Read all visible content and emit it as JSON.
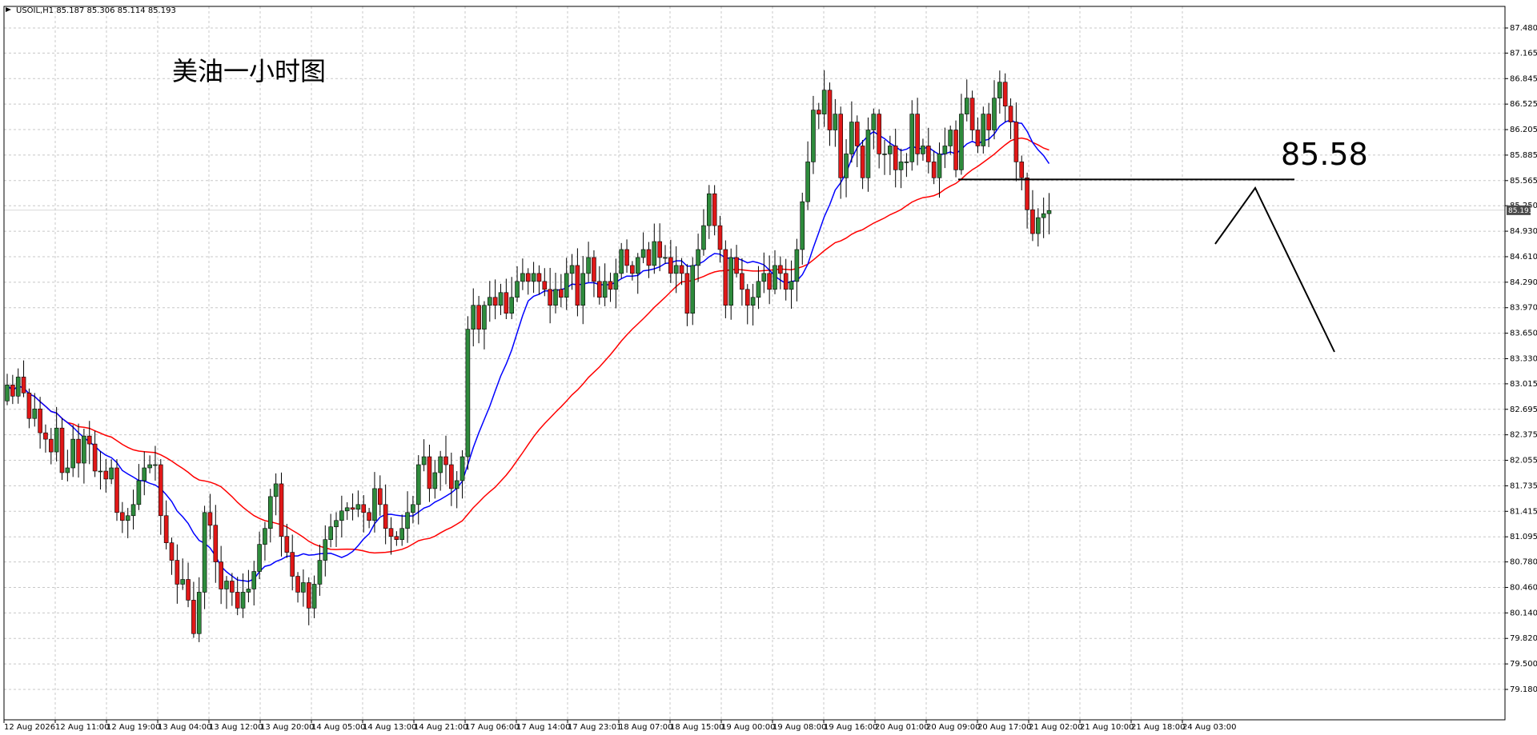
{
  "header": {
    "symbol": "USOIL,H1",
    "ohlc": "85.187 85.306 85.114 85.193"
  },
  "annotations": {
    "title_cn": "美油一小时图",
    "level_label": "85.58",
    "level_value": 85.58
  },
  "colors": {
    "bull_candle": "#2e8b3c",
    "bear_candle": "#e01818",
    "ma_fast": "#0000ff",
    "ma_slow": "#ff0000",
    "grid": "#c8c8c8",
    "price_tag": "#4a4a4a"
  },
  "chart_data": {
    "type": "candlestick",
    "ylim": [
      79.18,
      87.48
    ],
    "yticks": [
      "87.480",
      "87.165",
      "86.845",
      "86.525",
      "86.205",
      "85.885",
      "85.565",
      "85.250",
      "84.930",
      "84.610",
      "84.290",
      "83.970",
      "83.650",
      "83.330",
      "83.015",
      "82.695",
      "82.375",
      "82.055",
      "81.735",
      "81.415",
      "81.095",
      "80.780",
      "80.460",
      "80.140",
      "79.820",
      "79.500",
      "79.180"
    ],
    "xticks": [
      "12 Aug 2026",
      "12 Aug 11:00",
      "12 Aug 19:00",
      "13 Aug 04:00",
      "13 Aug 12:00",
      "13 Aug 20:00",
      "14 Aug 05:00",
      "14 Aug 13:00",
      "14 Aug 21:00",
      "17 Aug 06:00",
      "17 Aug 14:00",
      "17 Aug 23:01",
      "18 Aug 07:00",
      "18 Aug 15:00",
      "19 Aug 00:00",
      "19 Aug 08:00",
      "19 Aug 16:00",
      "20 Aug 01:00",
      "20 Aug 09:00",
      "20 Aug 17:00",
      "21 Aug 02:00",
      "21 Aug 10:00",
      "21 Aug 18:00",
      "24 Aug 03:00"
    ],
    "current_price": "85.193",
    "close": [
      83.0,
      82.86,
      83.1,
      82.9,
      82.58,
      82.7,
      82.4,
      82.32,
      82.16,
      82.46,
      81.9,
      81.96,
      82.32,
      82.02,
      82.36,
      82.26,
      81.92,
      81.92,
      81.82,
      81.96,
      81.4,
      81.3,
      81.36,
      81.5,
      81.8,
      81.96,
      82.0,
      82.0,
      81.36,
      81.02,
      80.8,
      80.5,
      80.56,
      80.3,
      79.88,
      80.4,
      81.4,
      81.24,
      80.78,
      80.44,
      80.54,
      80.4,
      80.2,
      80.4,
      80.44,
      80.66,
      81.0,
      81.2,
      81.6,
      81.76,
      81.1,
      80.9,
      80.6,
      80.4,
      80.52,
      80.2,
      80.5,
      80.8,
      81.06,
      81.22,
      81.3,
      81.42,
      81.46,
      81.44,
      81.5,
      81.4,
      81.3,
      81.7,
      81.5,
      81.2,
      81.1,
      81.06,
      81.2,
      81.4,
      81.5,
      82.0,
      82.1,
      81.7,
      81.9,
      82.1,
      82.0,
      81.7,
      81.8,
      82.1,
      83.7,
      84.0,
      83.7,
      84.0,
      84.1,
      84.0,
      84.16,
      83.9,
      84.1,
      84.3,
      84.4,
      84.3,
      84.4,
      84.3,
      84.2,
      84.0,
      84.2,
      84.1,
      84.4,
      84.5,
      84.0,
      84.4,
      84.6,
      84.3,
      84.1,
      84.3,
      84.2,
      84.4,
      84.7,
      84.5,
      84.4,
      84.6,
      84.7,
      84.5,
      84.8,
      84.6,
      84.6,
      84.4,
      84.5,
      84.4,
      83.9,
      84.5,
      84.7,
      85.0,
      85.4,
      85.0,
      84.7,
      84.0,
      84.6,
      84.4,
      84.2,
      84.0,
      84.1,
      84.3,
      84.4,
      84.2,
      84.5,
      84.4,
      84.2,
      84.3,
      84.7,
      85.3,
      85.8,
      86.45,
      86.4,
      86.7,
      86.2,
      86.4,
      85.6,
      85.9,
      86.3,
      86.0,
      85.6,
      86.2,
      86.4,
      85.9,
      85.9,
      86.0,
      85.7,
      85.8,
      85.8,
      86.4,
      85.9,
      86.0,
      85.8,
      85.6,
      85.9,
      86.0,
      86.2,
      85.7,
      86.4,
      86.6,
      86.2,
      86.0,
      86.4,
      86.2,
      86.6,
      86.8,
      86.5,
      86.3,
      85.8,
      85.6,
      85.2,
      84.9,
      85.1,
      85.15,
      85.19
    ]
  }
}
